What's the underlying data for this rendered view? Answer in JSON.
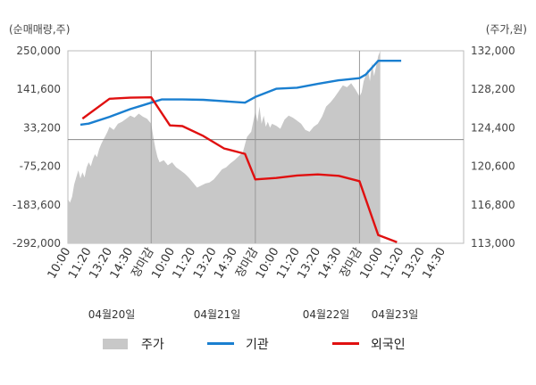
{
  "chart_data": {
    "type": "line",
    "left_axis_unit": "(순매매량,주)",
    "right_axis_unit": "(주가,원)",
    "left_axis": {
      "range": [
        -292000,
        250000
      ],
      "ticks": [
        250000,
        141600,
        33200,
        -75200,
        -183600,
        -292000
      ],
      "tick_labels": [
        "250,000",
        "141,600",
        "33,200",
        "-75,200",
        "-183,600",
        "-292,000"
      ]
    },
    "right_axis": {
      "range": [
        113000,
        132000
      ],
      "ticks": [
        132000,
        128200,
        124400,
        120600,
        116800,
        113000
      ],
      "tick_labels": [
        "132,000",
        "128,200",
        "124,400",
        "120,600",
        "116,800",
        "113,000"
      ]
    },
    "x_ticks": [
      {
        "label": "10:00",
        "color": "#333333"
      },
      {
        "label": "11:20",
        "color": "#333333"
      },
      {
        "label": "13:20",
        "color": "#333333"
      },
      {
        "label": "14:30",
        "color": "#333333"
      },
      {
        "label": "장마감",
        "color": "#e00000"
      },
      {
        "label": "10:00",
        "color": "#333333"
      },
      {
        "label": "11:20",
        "color": "#333333"
      },
      {
        "label": "13:20",
        "color": "#333333"
      },
      {
        "label": "14:30",
        "color": "#333333"
      },
      {
        "label": "장마감",
        "color": "#e00000"
      },
      {
        "label": "10:00",
        "color": "#333333"
      },
      {
        "label": "11:20",
        "color": "#333333"
      },
      {
        "label": "13:20",
        "color": "#333333"
      },
      {
        "label": "14:30",
        "color": "#333333"
      },
      {
        "label": "장마감",
        "color": "#e00000"
      },
      {
        "label": "10:00",
        "color": "#333333"
      },
      {
        "label": "11:20",
        "color": "#333333"
      },
      {
        "label": "13:20",
        "color": "#333333"
      },
      {
        "label": "14:30",
        "color": "#333333"
      }
    ],
    "date_labels": [
      "04월20일",
      "04월21일",
      "04월22일",
      "04월23일"
    ],
    "zero_reference": 0,
    "series": [
      {
        "name": "주가",
        "type": "area",
        "axis": "right",
        "color": "#c8c8c8",
        "points": [
          [
            0,
            117.4
          ],
          [
            0.1,
            117.0
          ],
          [
            0.2,
            117.6
          ],
          [
            0.3,
            118.8
          ],
          [
            0.4,
            119.5
          ],
          [
            0.5,
            120.2
          ],
          [
            0.6,
            119.4
          ],
          [
            0.7,
            120.0
          ],
          [
            0.8,
            119.5
          ],
          [
            0.9,
            120.5
          ],
          [
            1.0,
            121.0
          ],
          [
            1.1,
            120.6
          ],
          [
            1.2,
            121.3
          ],
          [
            1.3,
            121.8
          ],
          [
            1.4,
            121.5
          ],
          [
            1.5,
            122.3
          ],
          [
            1.6,
            122.8
          ],
          [
            1.7,
            123.2
          ],
          [
            1.8,
            123.6
          ],
          [
            1.9,
            124.0
          ],
          [
            2.0,
            124.5
          ],
          [
            2.2,
            124.2
          ],
          [
            2.4,
            124.8
          ],
          [
            2.6,
            125.0
          ],
          [
            2.8,
            125.3
          ],
          [
            3.0,
            125.6
          ],
          [
            3.2,
            125.4
          ],
          [
            3.4,
            125.8
          ],
          [
            3.6,
            125.5
          ],
          [
            3.8,
            125.3
          ],
          [
            4.0,
            124.8
          ],
          [
            4.1,
            123.5
          ],
          [
            4.2,
            122.4
          ],
          [
            4.3,
            121.5
          ],
          [
            4.4,
            121.0
          ],
          [
            4.6,
            121.2
          ],
          [
            4.8,
            120.7
          ],
          [
            5.0,
            121.0
          ],
          [
            5.2,
            120.5
          ],
          [
            5.4,
            120.2
          ],
          [
            5.6,
            119.9
          ],
          [
            5.8,
            119.5
          ],
          [
            6.0,
            119.0
          ],
          [
            6.2,
            118.5
          ],
          [
            6.4,
            118.7
          ],
          [
            6.6,
            118.9
          ],
          [
            6.8,
            119.0
          ],
          [
            7.0,
            119.3
          ],
          [
            7.2,
            119.8
          ],
          [
            7.4,
            120.3
          ],
          [
            7.6,
            120.5
          ],
          [
            7.8,
            120.9
          ],
          [
            8.0,
            121.2
          ],
          [
            8.2,
            121.6
          ],
          [
            8.4,
            122.0
          ],
          [
            8.6,
            123.5
          ],
          [
            8.8,
            124.0
          ],
          [
            9.0,
            126.0
          ],
          [
            9.1,
            125.0
          ],
          [
            9.2,
            126.5
          ],
          [
            9.3,
            124.8
          ],
          [
            9.4,
            125.6
          ],
          [
            9.5,
            124.5
          ],
          [
            9.6,
            125.0
          ],
          [
            9.7,
            124.4
          ],
          [
            9.8,
            124.8
          ],
          [
            10.0,
            124.6
          ],
          [
            10.2,
            124.3
          ],
          [
            10.4,
            125.2
          ],
          [
            10.6,
            125.6
          ],
          [
            10.8,
            125.4
          ],
          [
            11.0,
            125.1
          ],
          [
            11.2,
            124.8
          ],
          [
            11.4,
            124.2
          ],
          [
            11.6,
            124.0
          ],
          [
            11.8,
            124.5
          ],
          [
            12.0,
            124.8
          ],
          [
            12.2,
            125.5
          ],
          [
            12.4,
            126.5
          ],
          [
            12.6,
            126.9
          ],
          [
            12.8,
            127.4
          ],
          [
            13.0,
            128.0
          ],
          [
            13.2,
            128.6
          ],
          [
            13.4,
            128.4
          ],
          [
            13.6,
            128.8
          ],
          [
            13.8,
            128.2
          ],
          [
            14.0,
            127.5
          ],
          [
            14.1,
            127.9
          ],
          [
            14.2,
            129.0
          ],
          [
            14.3,
            129.6
          ],
          [
            14.4,
            130.2
          ],
          [
            14.5,
            129.0
          ],
          [
            14.6,
            130.8
          ],
          [
            14.7,
            129.5
          ],
          [
            14.8,
            130.5
          ],
          [
            14.9,
            131.5
          ],
          [
            15.0,
            132.0
          ]
        ]
      },
      {
        "name": "기관",
        "type": "line",
        "axis": "left",
        "color": "#1a7fd0",
        "points": [
          [
            0.6,
            42000
          ],
          [
            1.0,
            45000
          ],
          [
            2.0,
            64000
          ],
          [
            3.0,
            86000
          ],
          [
            3.5,
            95000
          ],
          [
            4.0,
            104000
          ],
          [
            4.5,
            113000
          ],
          [
            5.5,
            113000
          ],
          [
            6.5,
            112000
          ],
          [
            7.5,
            108000
          ],
          [
            8.5,
            104000
          ],
          [
            9.0,
            120000
          ],
          [
            10.0,
            143000
          ],
          [
            11.0,
            146000
          ],
          [
            12.0,
            157000
          ],
          [
            13.0,
            167000
          ],
          [
            14.0,
            173000
          ],
          [
            14.3,
            183000
          ],
          [
            14.9,
            222000
          ],
          [
            16.0,
            222000
          ]
        ]
      },
      {
        "name": "외국인",
        "type": "line",
        "axis": "left",
        "color": "#e01010",
        "points": [
          [
            0.7,
            59000
          ],
          [
            2.0,
            115000
          ],
          [
            3.0,
            118000
          ],
          [
            4.0,
            119000
          ],
          [
            4.9,
            40000
          ],
          [
            5.5,
            38000
          ],
          [
            6.5,
            10000
          ],
          [
            7.5,
            -25000
          ],
          [
            8.5,
            -40000
          ],
          [
            9.0,
            -112000
          ],
          [
            10.0,
            -108000
          ],
          [
            11.0,
            -101000
          ],
          [
            12.0,
            -98000
          ],
          [
            13.0,
            -102000
          ],
          [
            14.0,
            -117000
          ],
          [
            14.9,
            -269000
          ],
          [
            15.8,
            -289000
          ]
        ]
      }
    ],
    "legend": {
      "position": "bottom",
      "items": [
        {
          "label": "주가",
          "color": "#c8c8c8",
          "shape": "area"
        },
        {
          "label": "기관",
          "color": "#1a7fd0",
          "shape": "line"
        },
        {
          "label": "외국인",
          "color": "#e01010",
          "shape": "line"
        }
      ]
    },
    "grid": {
      "vertical_separators": true,
      "horizontal": false
    }
  }
}
